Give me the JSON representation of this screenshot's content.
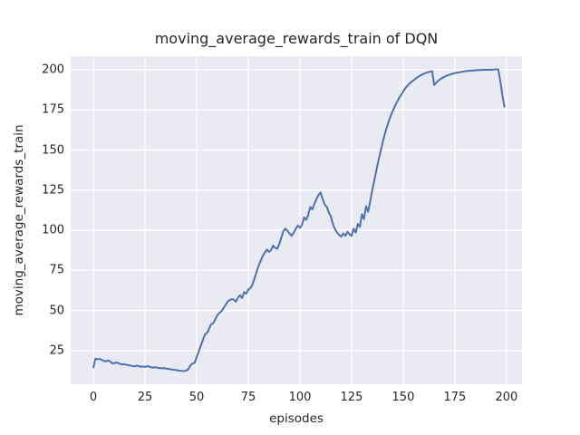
{
  "colors": {
    "figure_background": "#ffffff",
    "axes_background": "#eaeaf2",
    "grid": "#ffffff",
    "line": "#4c72b0",
    "text": "#262626"
  },
  "chart_data": {
    "type": "line",
    "title": "moving_average_rewards_train of DQN",
    "xlabel": "episodes",
    "ylabel": "moving_average_rewards_train",
    "legend": null,
    "grid": true,
    "xlim": [
      -11,
      207.5
    ],
    "ylim": [
      4,
      208.5
    ],
    "xticks": [
      0,
      25,
      50,
      75,
      100,
      125,
      150,
      175,
      200
    ],
    "yticks": [
      25,
      50,
      75,
      100,
      125,
      150,
      175,
      200
    ],
    "series": [
      {
        "name": "moving_average_rewards_train",
        "x_start": 0,
        "x_step": 1,
        "y": [
          14.5,
          20.0,
          19.5,
          19.8,
          19.2,
          18.6,
          18.2,
          18.9,
          18.3,
          17.2,
          16.9,
          17.6,
          17.2,
          16.7,
          16.3,
          16.6,
          16.1,
          15.9,
          15.6,
          15.4,
          15.1,
          15.6,
          15.3,
          14.9,
          15.1,
          14.8,
          15.3,
          15.0,
          14.6,
          14.4,
          14.6,
          14.3,
          14.1,
          13.9,
          14.1,
          13.8,
          13.6,
          13.4,
          13.2,
          13.0,
          12.8,
          12.6,
          12.4,
          12.3,
          12.2,
          12.6,
          13.4,
          15.8,
          17.0,
          17.3,
          21.0,
          24.5,
          28.0,
          31.5,
          35.0,
          36.0,
          38.5,
          41.5,
          42.0,
          44.5,
          47.0,
          48.5,
          49.5,
          51.5,
          53.5,
          55.5,
          56.5,
          57.0,
          56.8,
          55.5,
          58.0,
          59.5,
          57.8,
          61.5,
          60.5,
          63.0,
          64.0,
          66.0,
          70.0,
          74.0,
          78.0,
          81.0,
          84.0,
          86.0,
          88.0,
          86.5,
          87.5,
          90.5,
          89.0,
          88.5,
          91.5,
          95.5,
          99.5,
          101.0,
          99.5,
          98.0,
          96.5,
          98.5,
          101.0,
          103.0,
          101.5,
          103.5,
          108.0,
          106.5,
          109.5,
          114.5,
          113.0,
          116.5,
          119.5,
          122.0,
          123.5,
          119.5,
          116.0,
          114.5,
          111.0,
          108.5,
          103.5,
          100.5,
          98.5,
          97.0,
          96.0,
          98.0,
          96.5,
          99.0,
          97.5,
          96.5,
          101.0,
          98.5,
          104.0,
          102.0,
          110.0,
          107.0,
          115.0,
          111.5,
          118.0,
          125.0,
          131.0,
          137.5,
          143.5,
          149.0,
          154.5,
          159.5,
          164.0,
          168.0,
          171.5,
          174.5,
          177.5,
          180.0,
          182.5,
          184.5,
          186.5,
          188.5,
          190.0,
          191.5,
          192.5,
          193.5,
          194.5,
          195.5,
          196.2,
          197.0,
          197.6,
          198.1,
          198.5,
          198.9,
          199.2,
          190.5,
          192.0,
          193.2,
          194.2,
          195.0,
          195.7,
          196.3,
          196.8,
          197.2,
          197.6,
          197.9,
          198.2,
          198.5,
          198.7,
          198.9,
          199.1,
          199.3,
          199.4,
          199.5,
          199.6,
          199.7,
          199.8,
          199.9,
          199.9,
          200.0,
          200.0,
          200.0,
          200.0,
          200.1,
          200.2,
          200.3,
          200.3,
          193.0,
          184.0,
          177.0
        ]
      }
    ]
  }
}
